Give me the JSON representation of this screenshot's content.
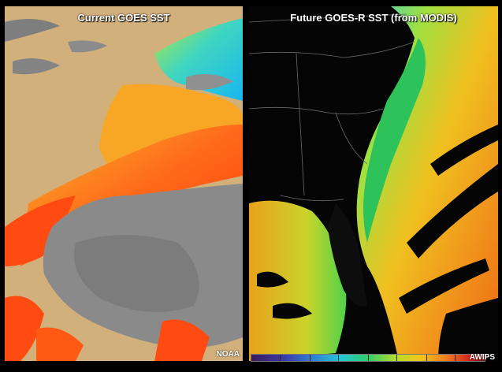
{
  "panels": {
    "left": {
      "title": "Current GOES SST",
      "credit": "NOAA"
    },
    "right": {
      "title": "Future GOES-R SST (from MODIS)",
      "credit": "AWIPS"
    }
  },
  "colors": {
    "land_tan": "#d2b07c",
    "cloud_gray": "#8a8a8a",
    "sst_warm": "#ff4a12",
    "sst_mid": "#f7b021",
    "sst_cool": "#2fd0e0",
    "background": "#000000"
  },
  "colorbar": {
    "palette": "sst-rainbow"
  }
}
